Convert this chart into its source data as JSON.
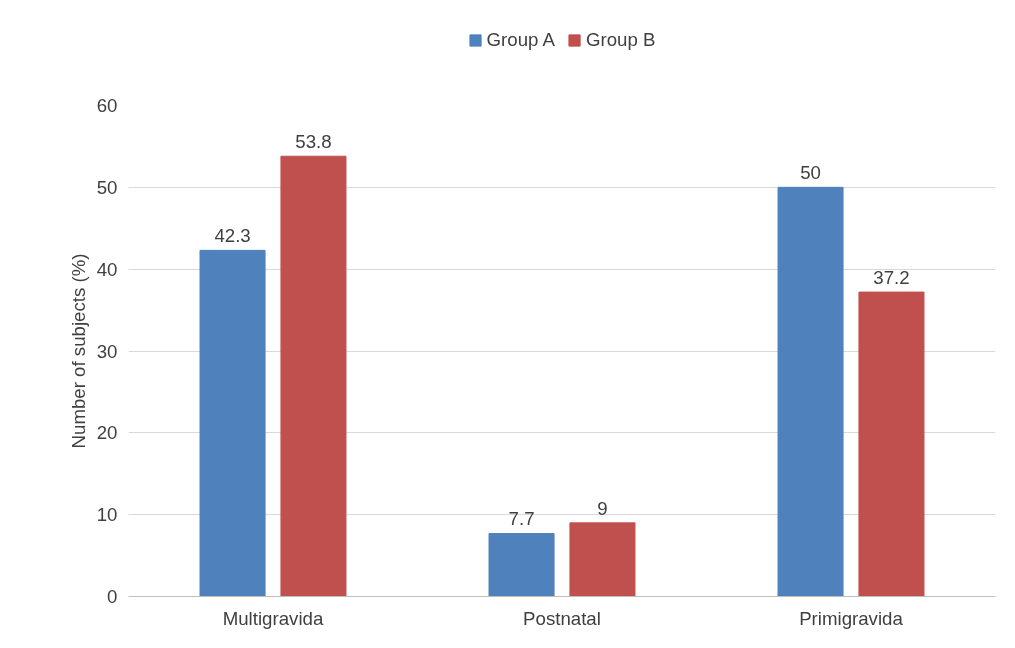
{
  "chart_data": {
    "type": "bar",
    "ylabel": "Number of subjects (%)",
    "categories": [
      "Multigravida",
      "Postnatal",
      "Primigravida"
    ],
    "series": [
      {
        "name": "Group A",
        "color": "#4f81bd",
        "values": [
          42.3,
          7.7,
          50
        ]
      },
      {
        "name": "Group B",
        "color": "#c0504d",
        "values": [
          53.8,
          9,
          37.2
        ]
      }
    ],
    "ylim": [
      0,
      60
    ],
    "yticks": [
      0,
      10,
      20,
      30,
      40,
      50,
      60
    ],
    "grid": "y",
    "legend": "top",
    "data_labels": true
  }
}
